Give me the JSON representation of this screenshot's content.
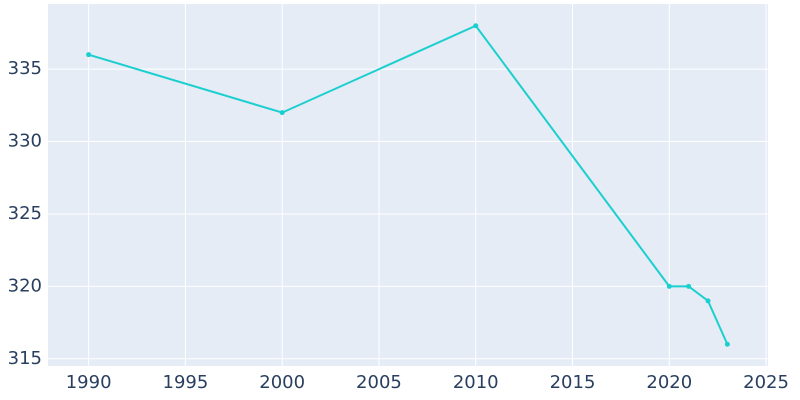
{
  "chart_data": {
    "type": "line",
    "x": [
      1990,
      2000,
      2010,
      2020,
      2021,
      2022,
      2023
    ],
    "series": [
      {
        "color": "#1ccfcf",
        "values": [
          336,
          332,
          338,
          320,
          320,
          319,
          316
        ]
      }
    ],
    "xlim": [
      1987.9,
      2025.1
    ],
    "xticks": [
      1990,
      1995,
      2000,
      2005,
      2010,
      2015,
      2020,
      2025
    ],
    "ylim": [
      314.5,
      339.5
    ],
    "yticks": [
      315,
      320,
      325,
      330,
      335
    ],
    "grid": true,
    "background": "#e5ecf6"
  }
}
